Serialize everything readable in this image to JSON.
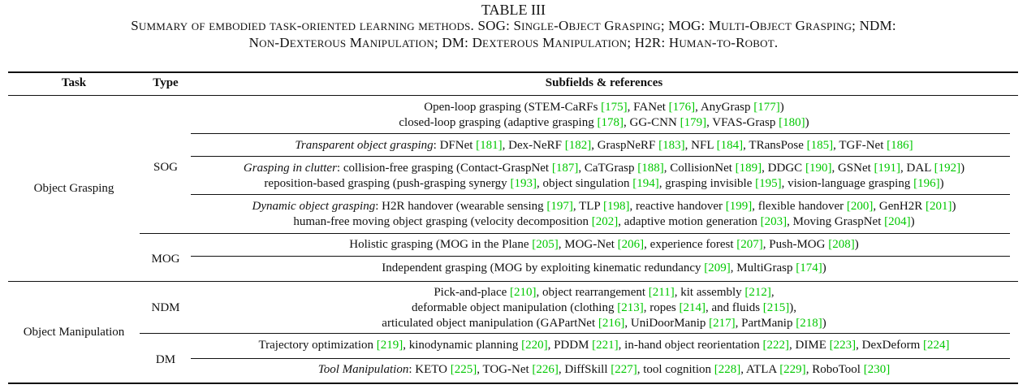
{
  "caption": {
    "title": "TABLE III",
    "line1": "Summary of embodied task-oriented learning methods. SOG: Single-Object Grasping; MOG: Multi-Object Grasping; NDM:",
    "line2": "Non-Dexterous Manipulation; DM: Dexterous Manipulation; H2R: Human-to-Robot."
  },
  "header": {
    "task": "Task",
    "type": "Type",
    "subfields": "Subfields & references"
  },
  "tasks": [
    "Object Grasping",
    "Object Manipulation"
  ],
  "types": [
    "SOG",
    "MOG",
    "NDM",
    "DM"
  ],
  "colors": {
    "reference": "#00c800",
    "text": "#111111"
  },
  "rows": [
    {
      "lines": [
        [
          [
            "t",
            "Open-loop grasping (STEM-CaRFs "
          ],
          [
            "r",
            "[175]"
          ],
          [
            "t",
            ", FANet "
          ],
          [
            "r",
            "[176]"
          ],
          [
            "t",
            ", AnyGrasp "
          ],
          [
            "r",
            "[177]"
          ],
          [
            "t",
            ")"
          ]
        ],
        [
          [
            "t",
            "closed-loop grasping (adaptive grasping "
          ],
          [
            "r",
            "[178]"
          ],
          [
            "t",
            ", GG-CNN "
          ],
          [
            "r",
            "[179]"
          ],
          [
            "t",
            ", VFAS-Grasp "
          ],
          [
            "r",
            "[180]"
          ],
          [
            "t",
            ")"
          ]
        ]
      ]
    },
    {
      "lines": [
        [
          [
            "i",
            "Transparent object grasping"
          ],
          [
            "t",
            ": DFNet "
          ],
          [
            "r",
            "[181]"
          ],
          [
            "t",
            ", Dex-NeRF "
          ],
          [
            "r",
            "[182]"
          ],
          [
            "t",
            ", GraspNeRF "
          ],
          [
            "r",
            "[183]"
          ],
          [
            "t",
            ", NFL "
          ],
          [
            "r",
            "[184]"
          ],
          [
            "t",
            ", TRansPose "
          ],
          [
            "r",
            "[185]"
          ],
          [
            "t",
            ", TGF-Net "
          ],
          [
            "r",
            "[186]"
          ]
        ]
      ]
    },
    {
      "lines": [
        [
          [
            "i",
            "Grasping in clutter"
          ],
          [
            "t",
            ": collision-free grasping (Contact-GraspNet "
          ],
          [
            "r",
            "[187]"
          ],
          [
            "t",
            ", CaTGrasp "
          ],
          [
            "r",
            "[188]"
          ],
          [
            "t",
            ", CollisionNet "
          ],
          [
            "r",
            "[189]"
          ],
          [
            "t",
            ", DDGC "
          ],
          [
            "r",
            "[190]"
          ],
          [
            "t",
            ", GSNet "
          ],
          [
            "r",
            "[191]"
          ],
          [
            "t",
            ", DAL "
          ],
          [
            "r",
            "[192]"
          ],
          [
            "t",
            ")"
          ]
        ],
        [
          [
            "t",
            "reposition-based grasping (push-grasping synergy "
          ],
          [
            "r",
            "[193]"
          ],
          [
            "t",
            ", object singulation "
          ],
          [
            "r",
            "[194]"
          ],
          [
            "t",
            ", grasping invisible "
          ],
          [
            "r",
            "[195]"
          ],
          [
            "t",
            ", vision-language grasping "
          ],
          [
            "r",
            "[196]"
          ],
          [
            "t",
            ")"
          ]
        ]
      ]
    },
    {
      "lines": [
        [
          [
            "i",
            "Dynamic object grasping"
          ],
          [
            "t",
            ": H2R handover (wearable sensing "
          ],
          [
            "r",
            "[197]"
          ],
          [
            "t",
            ", TLP "
          ],
          [
            "r",
            "[198]"
          ],
          [
            "t",
            ", reactive handover "
          ],
          [
            "r",
            "[199]"
          ],
          [
            "t",
            ", flexible handover "
          ],
          [
            "r",
            "[200]"
          ],
          [
            "t",
            ", GenH2R "
          ],
          [
            "r",
            "[201]"
          ],
          [
            "t",
            ")"
          ]
        ],
        [
          [
            "t",
            "human-free moving object grasping (velocity decomposition "
          ],
          [
            "r",
            "[202]"
          ],
          [
            "t",
            ", adaptive motion generation "
          ],
          [
            "r",
            "[203]"
          ],
          [
            "t",
            ", Moving GraspNet "
          ],
          [
            "r",
            "[204]"
          ],
          [
            "t",
            ")"
          ]
        ]
      ]
    },
    {
      "lines": [
        [
          [
            "t",
            "Holistic grasping (MOG in the Plane "
          ],
          [
            "r",
            "[205]"
          ],
          [
            "t",
            ", MOG-Net "
          ],
          [
            "r",
            "[206]"
          ],
          [
            "t",
            ", experience forest "
          ],
          [
            "r",
            "[207]"
          ],
          [
            "t",
            ", Push-MOG "
          ],
          [
            "r",
            "[208]"
          ],
          [
            "t",
            ")"
          ]
        ]
      ]
    },
    {
      "lines": [
        [
          [
            "t",
            "Independent grasping (MOG by exploiting kinematic redundancy "
          ],
          [
            "r",
            "[209]"
          ],
          [
            "t",
            ", MultiGrasp "
          ],
          [
            "r",
            "[174]"
          ],
          [
            "t",
            ")"
          ]
        ]
      ]
    },
    {
      "lines": [
        [
          [
            "t",
            "Pick-and-place "
          ],
          [
            "r",
            "[210]"
          ],
          [
            "t",
            ", object rearrangement "
          ],
          [
            "r",
            "[211]"
          ],
          [
            "t",
            ", kit assembly "
          ],
          [
            "r",
            "[212]"
          ],
          [
            "t",
            ","
          ]
        ],
        [
          [
            "t",
            "deformable object manipulation (clothing "
          ],
          [
            "r",
            "[213]"
          ],
          [
            "t",
            ", ropes "
          ],
          [
            "r",
            "[214]"
          ],
          [
            "t",
            ", and fluids "
          ],
          [
            "r",
            "[215]"
          ],
          [
            "t",
            "),"
          ]
        ],
        [
          [
            "t",
            "articulated object manipulation (GAPartNet "
          ],
          [
            "r",
            "[216]"
          ],
          [
            "t",
            ", UniDoorManip "
          ],
          [
            "r",
            "[217]"
          ],
          [
            "t",
            ", PartManip "
          ],
          [
            "r",
            "[218]"
          ],
          [
            "t",
            ")"
          ]
        ]
      ]
    },
    {
      "lines": [
        [
          [
            "t",
            "Trajectory optimization "
          ],
          [
            "r",
            "[219]"
          ],
          [
            "t",
            ", kinodynamic planning "
          ],
          [
            "r",
            "[220]"
          ],
          [
            "t",
            ", PDDM "
          ],
          [
            "r",
            "[221]"
          ],
          [
            "t",
            ", in-hand object reorientation "
          ],
          [
            "r",
            "[222]"
          ],
          [
            "t",
            ", DIME "
          ],
          [
            "r",
            "[223]"
          ],
          [
            "t",
            ", DexDeform "
          ],
          [
            "r",
            "[224]"
          ]
        ]
      ]
    },
    {
      "lines": [
        [
          [
            "i",
            "Tool Manipulation"
          ],
          [
            "t",
            ": KETO "
          ],
          [
            "r",
            "[225]"
          ],
          [
            "t",
            ", TOG-Net "
          ],
          [
            "r",
            "[226]"
          ],
          [
            "t",
            ", DiffSkill "
          ],
          [
            "r",
            "[227]"
          ],
          [
            "t",
            ", tool cognition "
          ],
          [
            "r",
            "[228]"
          ],
          [
            "t",
            ", ATLA "
          ],
          [
            "r",
            "[229]"
          ],
          [
            "t",
            ", RoboTool "
          ],
          [
            "r",
            "[230]"
          ]
        ]
      ]
    }
  ]
}
